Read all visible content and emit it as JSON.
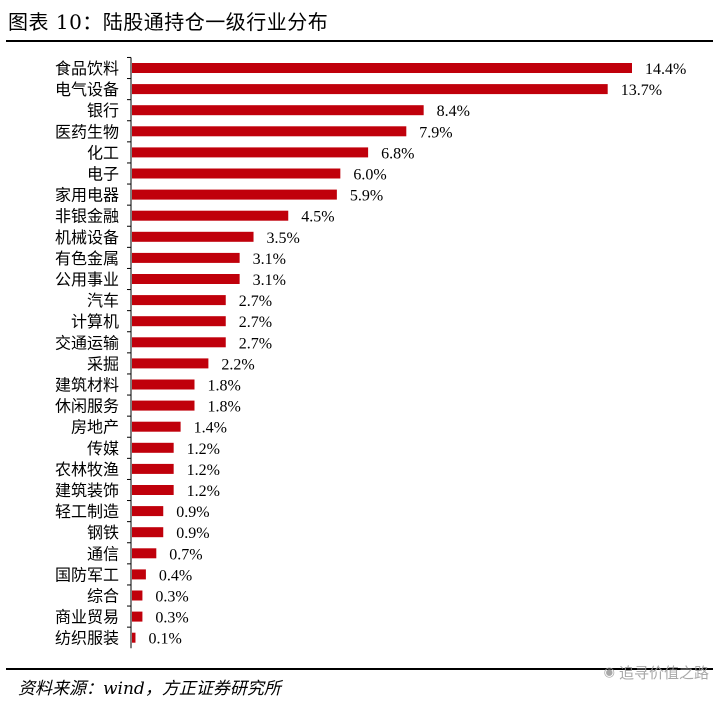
{
  "title": "图表 10：陆股通持仓一级行业分布",
  "source": "资料来源：wind，方正证券研究所",
  "watermark": "追寻价值之路",
  "colors": {
    "bar": "#c0000b",
    "axis": "#000000"
  },
  "chart_data": {
    "type": "bar",
    "orientation": "horizontal",
    "categories": [
      "食品饮料",
      "电气设备",
      "银行",
      "医药生物",
      "化工",
      "电子",
      "家用电器",
      "非银金融",
      "机械设备",
      "有色金属",
      "公用事业",
      "汽车",
      "计算机",
      "交通运输",
      "采掘",
      "建筑材料",
      "休闲服务",
      "房地产",
      "传媒",
      "农林牧渔",
      "建筑装饰",
      "轻工制造",
      "钢铁",
      "通信",
      "国防军工",
      "综合",
      "商业贸易",
      "纺织服装"
    ],
    "values": [
      14.4,
      13.7,
      8.4,
      7.9,
      6.8,
      6.0,
      5.9,
      4.5,
      3.5,
      3.1,
      3.1,
      2.7,
      2.7,
      2.7,
      2.2,
      1.8,
      1.8,
      1.4,
      1.2,
      1.2,
      1.2,
      0.9,
      0.9,
      0.7,
      0.4,
      0.3,
      0.3,
      0.1
    ],
    "labels": [
      "14.4%",
      "13.7%",
      "8.4%",
      "7.9%",
      "6.8%",
      "6.0%",
      "5.9%",
      "4.5%",
      "3.5%",
      "3.1%",
      "3.1%",
      "2.7%",
      "2.7%",
      "2.7%",
      "2.2%",
      "1.8%",
      "1.8%",
      "1.4%",
      "1.2%",
      "1.2%",
      "1.2%",
      "0.9%",
      "0.9%",
      "0.7%",
      "0.4%",
      "0.3%",
      "0.3%",
      "0.1%"
    ],
    "unit": "%",
    "xlim": [
      0,
      14.4
    ],
    "grid": false,
    "legend": "none"
  }
}
